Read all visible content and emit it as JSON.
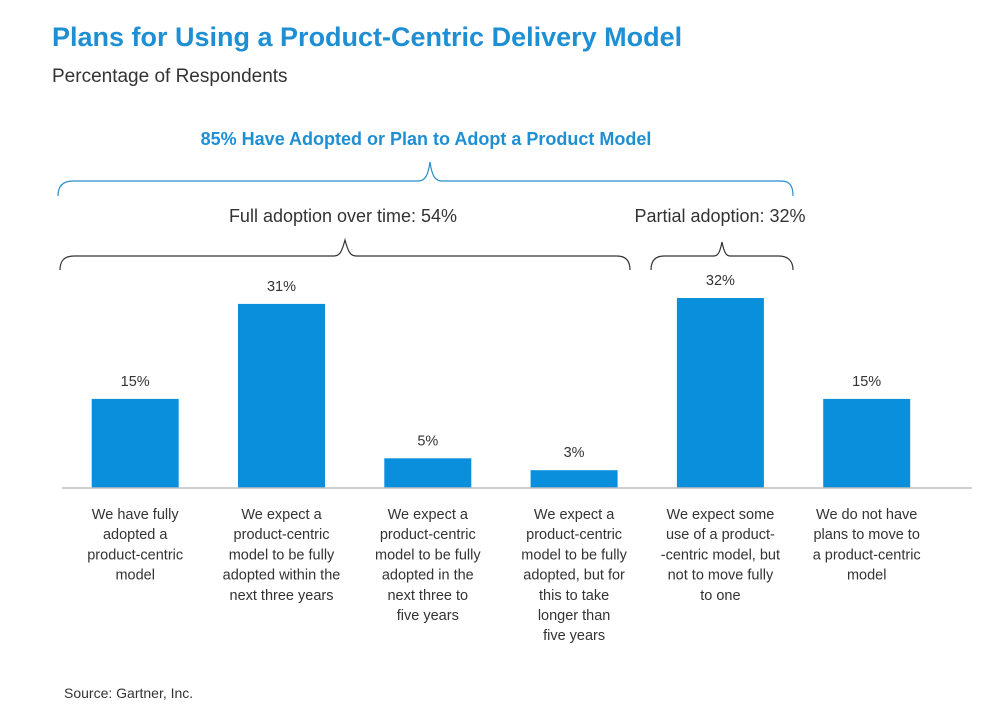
{
  "title": "Plans for Using a Product-Centric Delivery Model",
  "subtitle": "Percentage of Respondents",
  "source": "Source: Gartner, Inc.",
  "colors": {
    "bar": "#0a8fdc",
    "title": "#1f8fd3",
    "bracket_top": "#2a8fc9",
    "bracket_group": "#333333",
    "axis": "#bfbfbf"
  },
  "annotations": {
    "top": "85% Have Adopted or Plan to Adopt a Product Model",
    "full": "Full adoption over time: 54%",
    "partial": "Partial adoption: 32%"
  },
  "chart_data": {
    "type": "bar",
    "categories": [
      [
        "We have fully",
        "adopted a",
        "product-centric",
        "model"
      ],
      [
        "We expect a",
        "product-centric",
        "model to be fully",
        "adopted within the",
        "next three years"
      ],
      [
        "We expect a",
        "product-centric",
        "model to be fully",
        "adopted in the",
        "next three to",
        "five years"
      ],
      [
        "We expect a",
        "product-centric",
        "model to be fully",
        "adopted, but for",
        "this to take",
        "longer than",
        "five years"
      ],
      [
        "We expect some",
        "use of a product-",
        "-centric model, but",
        "not to move fully",
        "to one"
      ],
      [
        "We do not have",
        "plans to move to",
        "a product-centric",
        "model"
      ]
    ],
    "values": [
      15,
      31,
      5,
      3,
      32,
      15
    ],
    "value_labels": [
      "15%",
      "31%",
      "5%",
      "3%",
      "32%",
      "15%"
    ],
    "ylim": [
      0,
      32
    ],
    "grid": false,
    "legend": "none"
  }
}
